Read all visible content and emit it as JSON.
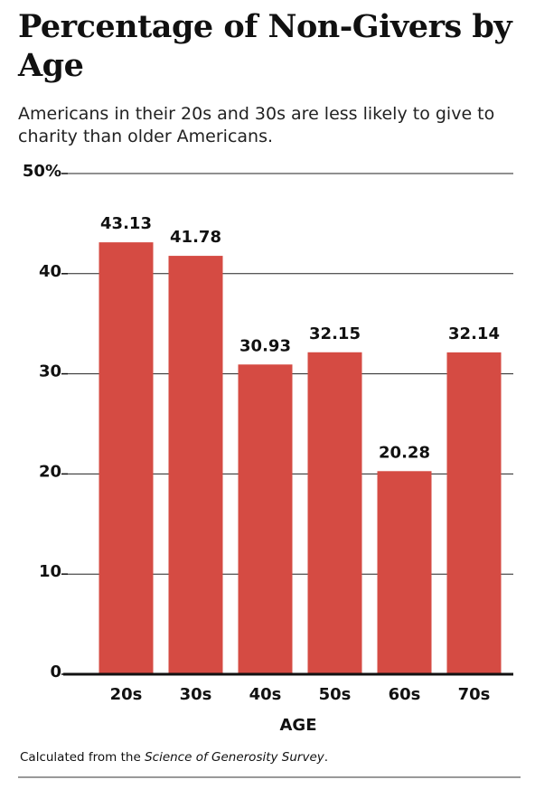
{
  "chart_data": {
    "type": "bar",
    "title": "Percentage of Non-Givers by Age",
    "subtitle": "Americans in their 20s and 30s are less likely to give to charity than older Americans.",
    "categories": [
      "20s",
      "30s",
      "40s",
      "50s",
      "60s",
      "70s"
    ],
    "values": [
      43.13,
      41.78,
      30.93,
      32.15,
      20.28,
      32.14
    ],
    "color": "#d54b43",
    "ylim": [
      0,
      50
    ],
    "yticks": [
      0,
      10,
      20,
      30,
      40,
      {
        "value": 50,
        "label": "50%"
      }
    ],
    "grid": true,
    "x_label": "AGE",
    "note": [
      "Calculated from the",
      "Science of Generosity Survey",
      "."
    ]
  }
}
